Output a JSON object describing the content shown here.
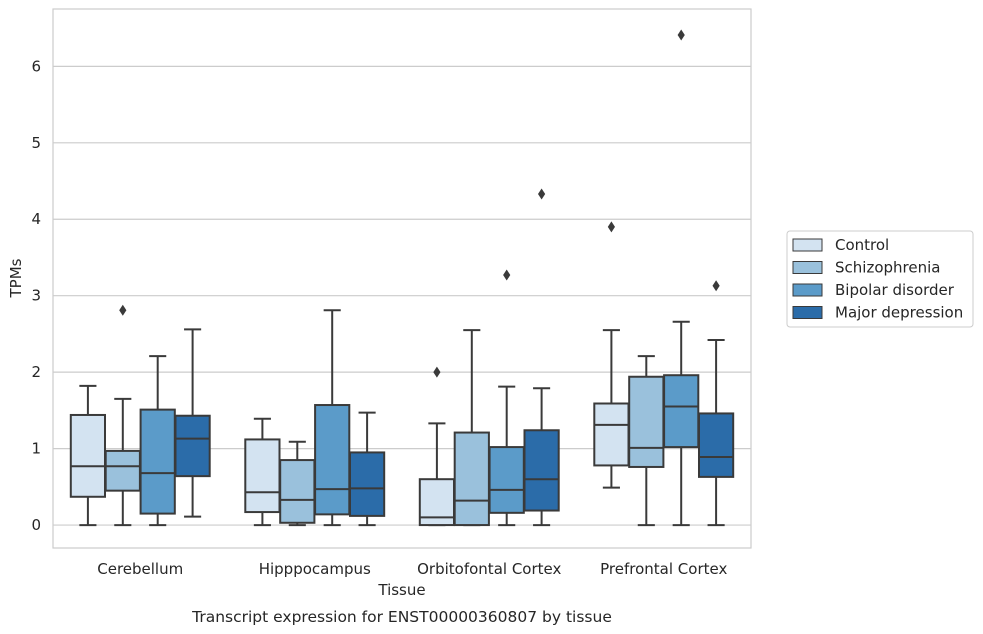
{
  "chart_data": {
    "type": "boxplot",
    "xlabel": "Tissue",
    "ylabel": "TPMs",
    "caption": "Transcript expression for ENST00000360807 by tissue",
    "ylim": [
      -0.3,
      6.75
    ],
    "yticks": [
      0,
      1,
      2,
      3,
      4,
      5,
      6
    ],
    "grid": "horizontal",
    "legend_position": "right",
    "categories": [
      "Cerebellum",
      "Hipppocampus",
      "Orbitofontal Cortex",
      "Prefrontal Cortex"
    ],
    "series": [
      {
        "name": "Control",
        "color": "#d3e3f1",
        "boxes": [
          {
            "whislo": 0.0,
            "q1": 0.37,
            "med": 0.77,
            "q3": 1.44,
            "whishi": 1.82,
            "fliers": []
          },
          {
            "whislo": 0.0,
            "q1": 0.17,
            "med": 0.43,
            "q3": 1.12,
            "whishi": 1.39,
            "fliers": []
          },
          {
            "whislo": 0.0,
            "q1": 0.0,
            "med": 0.1,
            "q3": 0.6,
            "whishi": 1.33,
            "fliers": [
              2.0
            ]
          },
          {
            "whislo": 0.49,
            "q1": 0.78,
            "med": 1.31,
            "q3": 1.59,
            "whishi": 2.55,
            "fliers": [
              3.9
            ]
          }
        ]
      },
      {
        "name": "Schizophrenia",
        "color": "#9ac1dc",
        "boxes": [
          {
            "whislo": 0.0,
            "q1": 0.45,
            "med": 0.77,
            "q3": 0.97,
            "whishi": 1.65,
            "fliers": [
              2.81
            ]
          },
          {
            "whislo": 0.0,
            "q1": 0.03,
            "med": 0.33,
            "q3": 0.85,
            "whishi": 1.09,
            "fliers": []
          },
          {
            "whislo": 0.0,
            "q1": 0.0,
            "med": 0.32,
            "q3": 1.21,
            "whishi": 2.55,
            "fliers": []
          },
          {
            "whislo": 0.0,
            "q1": 0.76,
            "med": 1.01,
            "q3": 1.94,
            "whishi": 2.21,
            "fliers": []
          }
        ]
      },
      {
        "name": "Bipolar disorder",
        "color": "#5b9bc9",
        "boxes": [
          {
            "whislo": 0.0,
            "q1": 0.15,
            "med": 0.68,
            "q3": 1.51,
            "whishi": 2.21,
            "fliers": []
          },
          {
            "whislo": 0.0,
            "q1": 0.14,
            "med": 0.47,
            "q3": 1.57,
            "whishi": 2.81,
            "fliers": []
          },
          {
            "whislo": 0.0,
            "q1": 0.16,
            "med": 0.46,
            "q3": 1.02,
            "whishi": 1.81,
            "fliers": [
              3.27
            ]
          },
          {
            "whislo": 0.0,
            "q1": 1.02,
            "med": 1.55,
            "q3": 1.96,
            "whishi": 2.66,
            "fliers": [
              6.41
            ]
          }
        ]
      },
      {
        "name": "Major depression",
        "color": "#2b6ca9",
        "boxes": [
          {
            "whislo": 0.11,
            "q1": 0.64,
            "med": 1.13,
            "q3": 1.43,
            "whishi": 2.56,
            "fliers": []
          },
          {
            "whislo": 0.0,
            "q1": 0.12,
            "med": 0.48,
            "q3": 0.95,
            "whishi": 1.47,
            "fliers": []
          },
          {
            "whislo": 0.0,
            "q1": 0.19,
            "med": 0.6,
            "q3": 1.24,
            "whishi": 1.79,
            "fliers": [
              4.33
            ]
          },
          {
            "whislo": 0.0,
            "q1": 0.63,
            "med": 0.89,
            "q3": 1.46,
            "whishi": 2.42,
            "fliers": [
              3.13
            ]
          }
        ]
      }
    ]
  }
}
